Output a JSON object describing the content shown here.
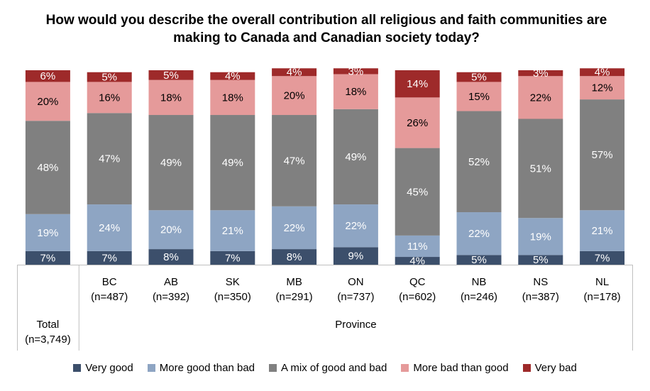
{
  "chart_data": {
    "type": "bar",
    "stacked": true,
    "title": "How would you describe the overall contribution all religious and faith communities are making to Canada and Canadian society today?",
    "categories": [
      {
        "label": "Total",
        "n": "(n=3,749)"
      },
      {
        "label": "BC",
        "n": "(n=487)"
      },
      {
        "label": "AB",
        "n": "(n=392)"
      },
      {
        "label": "SK",
        "n": "(n=350)"
      },
      {
        "label": "MB",
        "n": "(n=291)"
      },
      {
        "label": "ON",
        "n": "(n=737)"
      },
      {
        "label": "QC",
        "n": "(n=602)"
      },
      {
        "label": "NB",
        "n": "(n=246)"
      },
      {
        "label": "NS",
        "n": "(n=387)"
      },
      {
        "label": "NL",
        "n": "(n=178)"
      }
    ],
    "group_label": "Province",
    "series": [
      {
        "name": "Very good",
        "color": "#3c4f6b",
        "label_color": "#ffffff",
        "values": [
          7,
          7,
          8,
          7,
          8,
          9,
          4,
          5,
          5,
          7
        ]
      },
      {
        "name": "More good than bad",
        "color": "#8ea5c3",
        "label_color": "#ffffff",
        "values": [
          19,
          24,
          20,
          21,
          22,
          22,
          11,
          22,
          19,
          21
        ]
      },
      {
        "name": "A mix of good and bad",
        "color": "#808080",
        "label_color": "#ffffff",
        "values": [
          48,
          47,
          49,
          49,
          47,
          49,
          45,
          52,
          51,
          57
        ]
      },
      {
        "name": "More bad than good",
        "color": "#e59a9a",
        "label_color": "#000000",
        "values": [
          20,
          16,
          18,
          18,
          20,
          18,
          26,
          15,
          22,
          12
        ]
      },
      {
        "name": "Very bad",
        "color": "#9e2a2a",
        "label_color": "#ffffff",
        "values": [
          6,
          5,
          5,
          4,
          4,
          3,
          14,
          5,
          3,
          4
        ]
      }
    ],
    "value_suffix": "%",
    "ylim": [
      0,
      100
    ],
    "grid": false,
    "legend_position": "bottom"
  }
}
